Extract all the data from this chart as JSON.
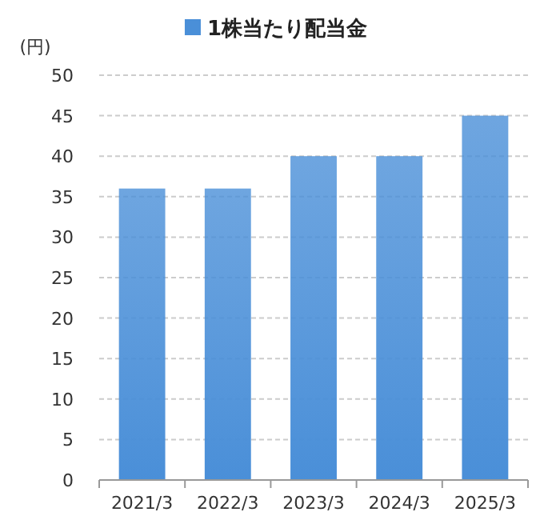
{
  "chart_data": {
    "type": "bar",
    "ylabel": "(円)",
    "categories": [
      "2021/3",
      "2022/3",
      "2023/3",
      "2024/3",
      "2025/3"
    ],
    "series": [
      {
        "name": "1株当たり配当金",
        "color": "#4a8fd8",
        "values": [
          36,
          36,
          40,
          40,
          45
        ]
      }
    ],
    "ylim": [
      0,
      50
    ],
    "yticks": [
      0,
      5,
      10,
      15,
      20,
      25,
      30,
      35,
      40,
      45,
      50
    ],
    "grid": "y",
    "legend": "top"
  }
}
